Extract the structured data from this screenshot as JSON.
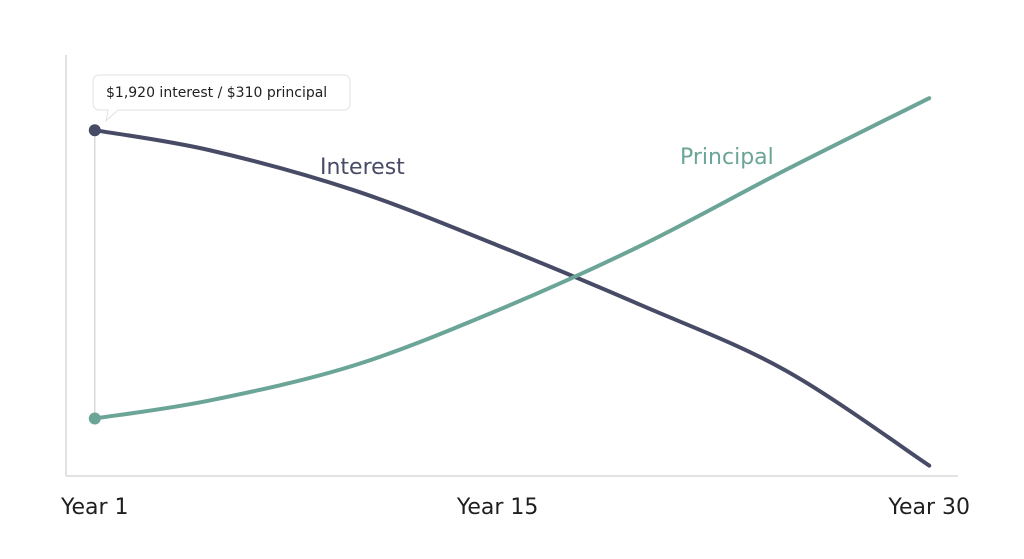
{
  "chart_data": {
    "type": "line",
    "x": [
      1,
      5,
      10,
      15,
      20,
      25,
      30
    ],
    "xlim": [
      0,
      31
    ],
    "xticks": [
      {
        "value": 1,
        "label": "Year 1"
      },
      {
        "value": 15,
        "label": "Year 15"
      },
      {
        "value": 30,
        "label": "Year 30"
      }
    ],
    "ylim": [
      0,
      2340
    ],
    "series": [
      {
        "name": "Interest",
        "color": "#474b66",
        "values": [
          1920,
          1808,
          1585,
          1277,
          942,
          579,
          47
        ]
      },
      {
        "name": "Principal",
        "color": "#6ba597",
        "values": [
          310,
          411,
          606,
          914,
          1277,
          1697,
          2099
        ]
      }
    ],
    "tooltip": "$1,920 interest / $310 principal"
  }
}
